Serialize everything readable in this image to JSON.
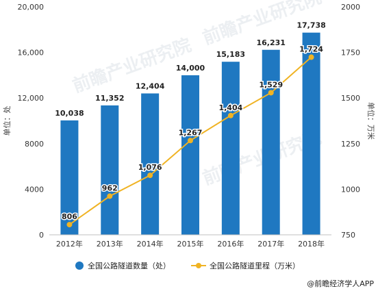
{
  "chart_data": {
    "type": "bar",
    "categories": [
      "2012年",
      "2013年",
      "2014年",
      "2015年",
      "2016年",
      "2017年",
      "2018年"
    ],
    "series": [
      {
        "name": "全国公路隧道数量（处）",
        "kind": "bar",
        "axis": "left",
        "color": "#1f78c1",
        "values": [
          10038,
          11352,
          12404,
          14000,
          15183,
          16231,
          17738
        ],
        "labels": [
          "10,038",
          "11,352",
          "12,404",
          "14,000",
          "15,183",
          "16,231",
          "17,738"
        ]
      },
      {
        "name": "全国公路隧道里程（万米）",
        "kind": "line",
        "axis": "right",
        "color": "#f0b323",
        "values": [
          806,
          962,
          1076,
          1267,
          1404,
          1529,
          1724
        ],
        "labels": [
          "806",
          "962",
          "1,076",
          "1,267",
          "1,404",
          "1,529",
          "1,724"
        ]
      }
    ],
    "ylabel_left": "单位：处",
    "ylabel_right": "单位：万米",
    "ylim_left": [
      0,
      20000
    ],
    "ylim_right": [
      750,
      2000
    ],
    "yticks_left": [
      "0",
      "4000",
      "8000",
      "12,000",
      "16,000",
      "20,000"
    ],
    "yticks_left_values": [
      0,
      4000,
      8000,
      12000,
      16000,
      20000
    ],
    "yticks_right": [
      "750",
      "1000",
      "1250",
      "1500",
      "1750",
      "2000"
    ],
    "yticks_right_values": [
      750,
      1000,
      1250,
      1500,
      1750,
      2000
    ],
    "grid": false,
    "legend": "bottom"
  },
  "watermark": "前瞻产业研究院",
  "credit": "@前瞻经济学人APP"
}
